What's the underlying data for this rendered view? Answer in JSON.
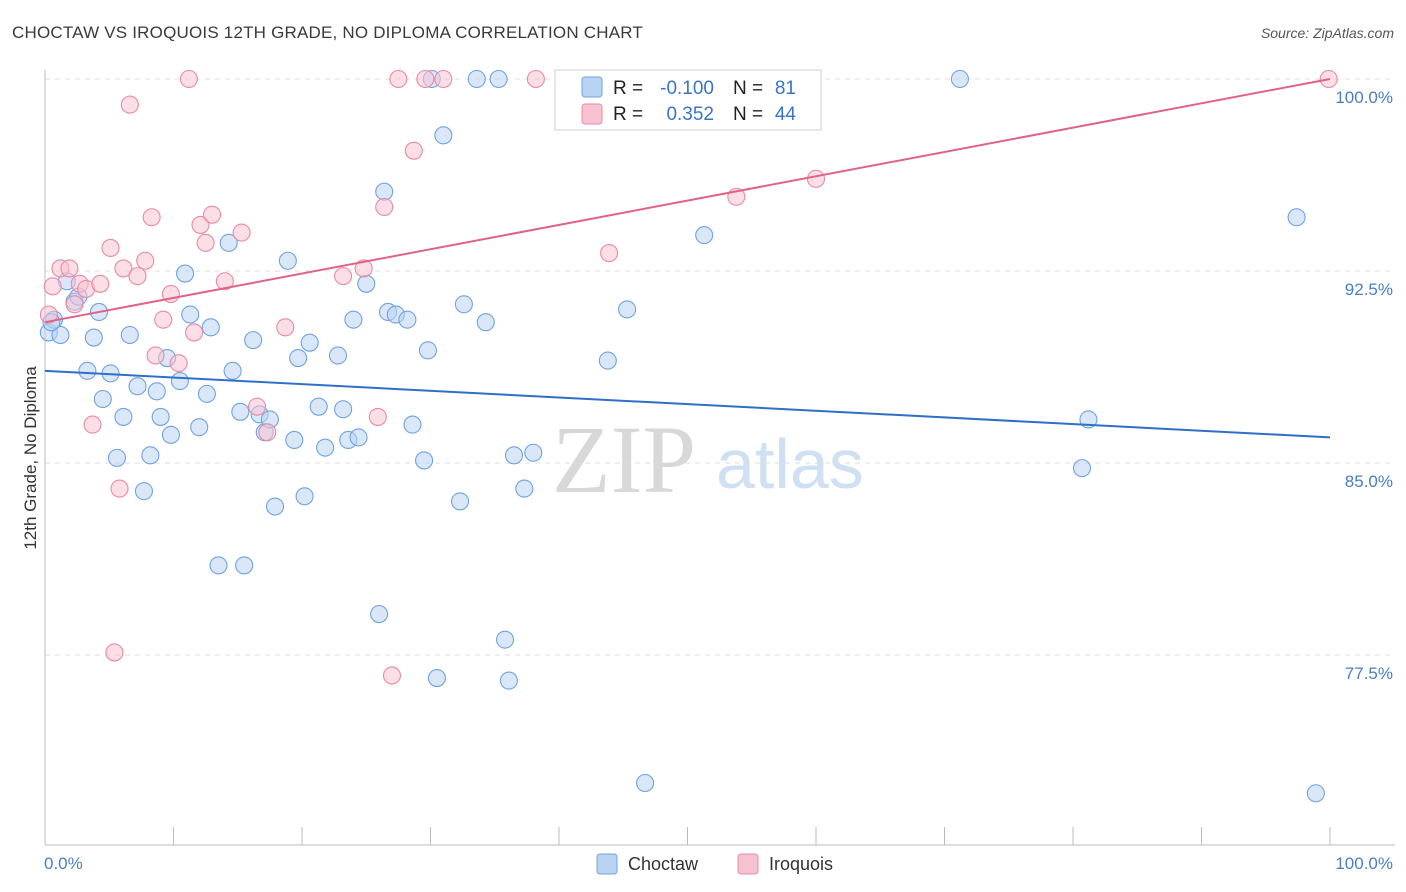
{
  "chart_data": {
    "type": "scatter",
    "title": "CHOCTAW VS IROQUOIS 12TH GRADE, NO DIPLOMA CORRELATION CHART",
    "source": "Source: ZipAtlas.com",
    "xlabel": "",
    "ylabel": "12th Grade, No Diploma",
    "xlim": [
      0,
      100
    ],
    "ylim": [
      69.5,
      100.8
    ],
    "x_tick_labels": [
      "0.0%",
      "100.0%"
    ],
    "y_ticks": [
      {
        "value": 100.0,
        "label": "100.0%"
      },
      {
        "value": 92.5,
        "label": "92.5%"
      },
      {
        "value": 85.0,
        "label": "85.0%"
      },
      {
        "value": 77.5,
        "label": "77.5%"
      }
    ],
    "watermark": {
      "zip": "ZIP",
      "atlas": "atlas"
    },
    "legend": {
      "r_label": "R =",
      "n_label": "N =",
      "entries": [
        {
          "name": "Choctaw",
          "r": "-0.100",
          "n": "81"
        },
        {
          "name": "Iroquois",
          "r": "0.352",
          "n": "44"
        }
      ]
    },
    "series": [
      {
        "name": "Choctaw",
        "color": "#6fa3e0",
        "fill": "#b9d3f3",
        "line_color": "#2f6fc7",
        "trend": {
          "x": [
            0,
            100
          ],
          "y": [
            88.6,
            86.0
          ]
        },
        "points": [
          [
            0.3,
            90.1
          ],
          [
            0.7,
            90.6
          ],
          [
            1.2,
            90.0
          ],
          [
            1.7,
            92.1
          ],
          [
            2.3,
            91.3
          ],
          [
            2.6,
            91.5
          ],
          [
            3.3,
            88.6
          ],
          [
            3.8,
            89.9
          ],
          [
            4.2,
            90.9
          ],
          [
            4.5,
            87.5
          ],
          [
            5.1,
            88.5
          ],
          [
            5.6,
            85.2
          ],
          [
            6.1,
            86.8
          ],
          [
            6.6,
            90.0
          ],
          [
            7.2,
            88.0
          ],
          [
            7.7,
            83.9
          ],
          [
            8.2,
            85.3
          ],
          [
            8.7,
            87.8
          ],
          [
            9.0,
            86.8
          ],
          [
            9.5,
            89.1
          ],
          [
            9.8,
            86.1
          ],
          [
            10.5,
            88.2
          ],
          [
            10.9,
            92.4
          ],
          [
            11.3,
            90.8
          ],
          [
            12.0,
            86.4
          ],
          [
            12.6,
            87.7
          ],
          [
            12.9,
            90.3
          ],
          [
            13.5,
            81.0
          ],
          [
            14.3,
            93.6
          ],
          [
            14.6,
            88.6
          ],
          [
            15.2,
            87.0
          ],
          [
            15.5,
            81.0
          ],
          [
            16.2,
            89.8
          ],
          [
            16.7,
            86.9
          ],
          [
            17.1,
            86.2
          ],
          [
            17.5,
            86.7
          ],
          [
            17.9,
            83.3
          ],
          [
            18.9,
            92.9
          ],
          [
            19.4,
            85.9
          ],
          [
            19.7,
            89.1
          ],
          [
            20.2,
            83.7
          ],
          [
            20.6,
            89.7
          ],
          [
            21.3,
            87.2
          ],
          [
            21.8,
            85.6
          ],
          [
            22.8,
            89.2
          ],
          [
            23.2,
            87.1
          ],
          [
            23.6,
            85.9
          ],
          [
            24.0,
            90.6
          ],
          [
            24.4,
            86.0
          ],
          [
            25.0,
            92.0
          ],
          [
            26.0,
            79.1
          ],
          [
            26.4,
            95.6
          ],
          [
            26.7,
            90.9
          ],
          [
            27.3,
            90.8
          ],
          [
            28.2,
            90.6
          ],
          [
            28.6,
            86.5
          ],
          [
            29.5,
            85.1
          ],
          [
            29.8,
            89.4
          ],
          [
            30.1,
            100.0
          ],
          [
            30.5,
            76.6
          ],
          [
            31.0,
            97.8
          ],
          [
            32.3,
            83.5
          ],
          [
            32.6,
            91.2
          ],
          [
            33.6,
            100.0
          ],
          [
            34.3,
            90.5
          ],
          [
            35.3,
            100.0
          ],
          [
            35.8,
            78.1
          ],
          [
            36.1,
            76.5
          ],
          [
            36.5,
            85.3
          ],
          [
            37.3,
            84.0
          ],
          [
            38.0,
            85.4
          ],
          [
            43.8,
            89.0
          ],
          [
            45.3,
            91.0
          ],
          [
            46.7,
            72.5
          ],
          [
            51.3,
            93.9
          ],
          [
            71.2,
            100.0
          ],
          [
            80.7,
            84.8
          ],
          [
            81.2,
            86.7
          ],
          [
            97.4,
            94.6
          ],
          [
            98.9,
            72.1
          ],
          [
            0.5,
            90.5
          ]
        ]
      },
      {
        "name": "Iroquois",
        "color": "#e88aa6",
        "fill": "#f7c3d2",
        "line_color": "#e0628a",
        "trend": {
          "x": [
            0,
            100
          ],
          "y": [
            90.5,
            100.0
          ]
        },
        "points": [
          [
            0.3,
            90.8
          ],
          [
            0.6,
            91.9
          ],
          [
            1.2,
            92.6
          ],
          [
            1.9,
            92.6
          ],
          [
            2.3,
            91.2
          ],
          [
            2.7,
            92.0
          ],
          [
            3.2,
            91.8
          ],
          [
            3.7,
            86.5
          ],
          [
            4.3,
            92.0
          ],
          [
            5.1,
            93.4
          ],
          [
            5.4,
            77.6
          ],
          [
            5.8,
            84.0
          ],
          [
            6.1,
            92.6
          ],
          [
            6.6,
            99.0
          ],
          [
            7.2,
            92.3
          ],
          [
            7.8,
            92.9
          ],
          [
            8.3,
            94.6
          ],
          [
            8.6,
            89.2
          ],
          [
            9.2,
            90.6
          ],
          [
            9.8,
            91.6
          ],
          [
            10.4,
            88.9
          ],
          [
            11.2,
            100.0
          ],
          [
            11.6,
            90.1
          ],
          [
            12.1,
            94.3
          ],
          [
            12.5,
            93.6
          ],
          [
            13.0,
            94.7
          ],
          [
            14.0,
            92.1
          ],
          [
            15.3,
            94.0
          ],
          [
            16.5,
            87.2
          ],
          [
            17.3,
            86.2
          ],
          [
            18.7,
            90.3
          ],
          [
            23.2,
            92.3
          ],
          [
            24.8,
            92.6
          ],
          [
            25.9,
            86.8
          ],
          [
            26.4,
            95.0
          ],
          [
            27.0,
            76.7
          ],
          [
            27.5,
            100.0
          ],
          [
            28.7,
            97.2
          ],
          [
            29.6,
            100.0
          ],
          [
            31.0,
            100.0
          ],
          [
            38.2,
            100.0
          ],
          [
            43.9,
            93.2
          ],
          [
            53.8,
            95.4
          ],
          [
            60.0,
            96.1
          ],
          [
            99.9,
            100.0
          ]
        ]
      }
    ]
  }
}
